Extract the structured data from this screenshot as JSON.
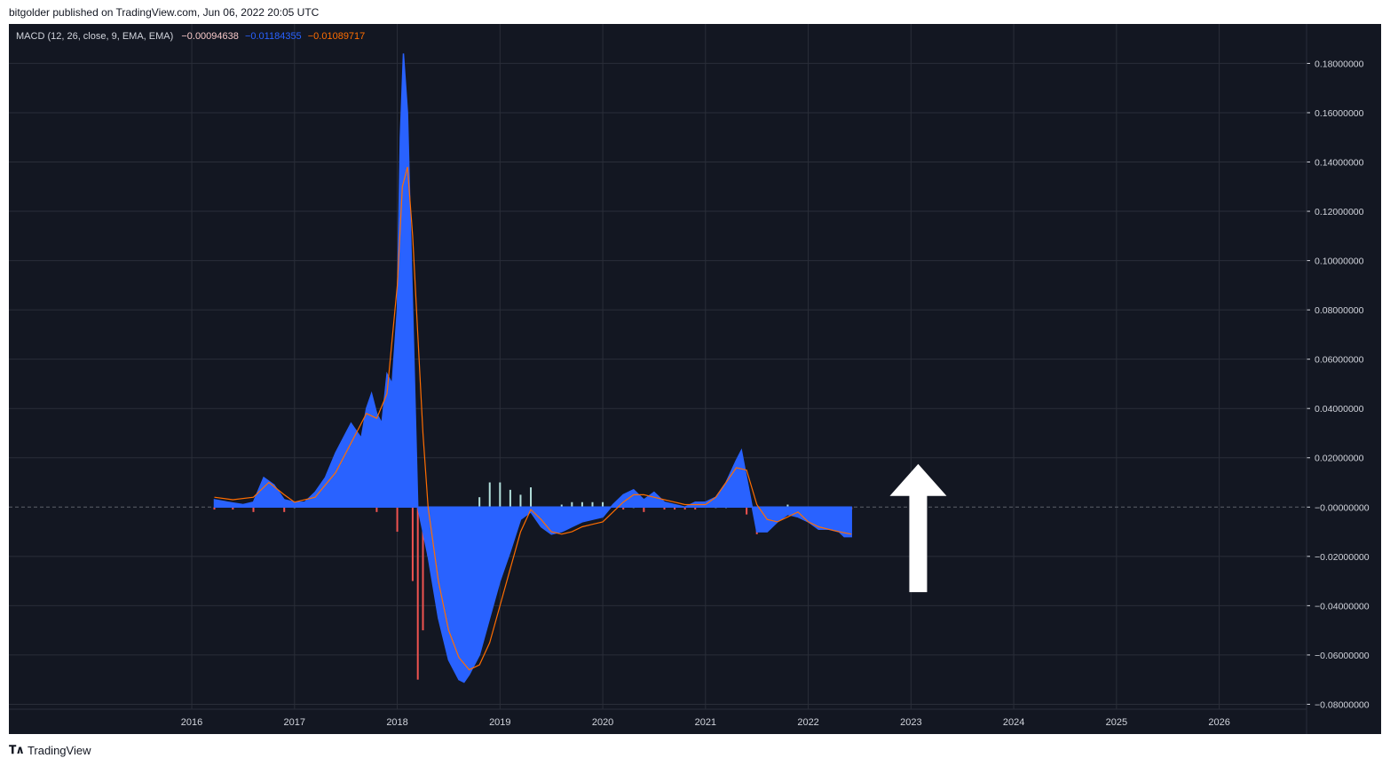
{
  "header": {
    "published": "bitgolder published on TradingView.com, Jun 06, 2022 20:05 UTC"
  },
  "legend": {
    "indicator": "MACD (12, 26, close, 9, EMA, EMA)",
    "histogram_value": "−0.00094638",
    "macd_value": "−0.01184355",
    "signal_value": "−0.01089717"
  },
  "footer": {
    "brand": "TradingView",
    "logo_icon": "tradingview-logo-icon"
  },
  "colors": {
    "background": "#131722",
    "grid": "#2a2e39",
    "text": "#d1d4dc",
    "macd": "#2962ff",
    "signal": "#ff6d00",
    "hist_up": "#26a69a",
    "hist_up_light": "#b2dfdb",
    "hist_down": "#ef5350",
    "hist_down_light": "#ffcdd2",
    "arrow": "#ffffff"
  },
  "chart_data": {
    "type": "area",
    "title": "MACD (12, 26, close, 9, EMA, EMA)",
    "x_ticks": [
      "2016",
      "2017",
      "2018",
      "2019",
      "2020",
      "2021",
      "2022",
      "2023",
      "2024",
      "2025",
      "2026"
    ],
    "y_ticks": [
      "0.18000000",
      "0.16000000",
      "0.14000000",
      "0.12000000",
      "0.10000000",
      "0.08000000",
      "0.06000000",
      "0.04000000",
      "0.02000000",
      "−0.00000000",
      "−0.02000000",
      "−0.04000000",
      "−0.06000000",
      "−0.08000000"
    ],
    "ylim": [
      -0.082,
      0.196
    ],
    "xlim": [
      2014.22,
      2026.85
    ],
    "grid": true,
    "annotation": "white up arrow near 2023 over the zero line",
    "series": [
      {
        "name": "MACD",
        "x": [
          2016.22,
          2016.35,
          2016.5,
          2016.6,
          2016.7,
          2016.8,
          2016.9,
          2017.0,
          2017.1,
          2017.2,
          2017.3,
          2017.4,
          2017.5,
          2017.55,
          2017.65,
          2017.7,
          2017.75,
          2017.8,
          2017.85,
          2017.9,
          2017.95,
          2018.0,
          2018.03,
          2018.06,
          2018.1,
          2018.15,
          2018.2,
          2018.3,
          2018.4,
          2018.5,
          2018.6,
          2018.65,
          2018.7,
          2018.8,
          2018.9,
          2019.0,
          2019.1,
          2019.2,
          2019.3,
          2019.4,
          2019.5,
          2019.6,
          2019.7,
          2019.8,
          2019.9,
          2020.0,
          2020.1,
          2020.2,
          2020.3,
          2020.4,
          2020.5,
          2020.6,
          2020.7,
          2020.8,
          2020.9,
          2021.0,
          2021.1,
          2021.2,
          2021.3,
          2021.35,
          2021.4,
          2021.5,
          2021.6,
          2021.7,
          2021.8,
          2021.9,
          2022.0,
          2022.1,
          2022.2,
          2022.3,
          2022.35,
          2022.42
        ],
        "y": [
          0.003,
          0.002,
          0.001,
          0.002,
          0.012,
          0.009,
          0.003,
          0.002,
          0.002,
          0.006,
          0.012,
          0.022,
          0.03,
          0.034,
          0.028,
          0.04,
          0.046,
          0.038,
          0.034,
          0.054,
          0.05,
          0.08,
          0.15,
          0.184,
          0.16,
          0.08,
          0.0,
          -0.02,
          -0.045,
          -0.062,
          -0.07,
          -0.071,
          -0.068,
          -0.06,
          -0.045,
          -0.03,
          -0.018,
          -0.005,
          -0.002,
          -0.008,
          -0.011,
          -0.01,
          -0.008,
          -0.006,
          -0.005,
          -0.004,
          0.001,
          0.005,
          0.007,
          0.003,
          0.006,
          0.002,
          0.001,
          0.0,
          0.002,
          0.002,
          0.004,
          0.01,
          0.019,
          0.023,
          0.012,
          -0.01,
          -0.01,
          -0.006,
          -0.003,
          -0.004,
          -0.006,
          -0.009,
          -0.009,
          -0.01,
          -0.012,
          -0.012
        ]
      },
      {
        "name": "Signal",
        "x": [
          2016.22,
          2016.4,
          2016.6,
          2016.75,
          2016.9,
          2017.0,
          2017.2,
          2017.4,
          2017.6,
          2017.7,
          2017.8,
          2017.9,
          2018.0,
          2018.05,
          2018.1,
          2018.15,
          2018.2,
          2018.25,
          2018.3,
          2018.4,
          2018.5,
          2018.6,
          2018.7,
          2018.8,
          2018.9,
          2019.0,
          2019.1,
          2019.2,
          2019.3,
          2019.4,
          2019.5,
          2019.6,
          2019.7,
          2019.8,
          2019.9,
          2020.0,
          2020.2,
          2020.3,
          2020.4,
          2020.5,
          2020.6,
          2020.7,
          2020.8,
          2020.9,
          2021.0,
          2021.1,
          2021.2,
          2021.3,
          2021.4,
          2021.5,
          2021.6,
          2021.7,
          2021.8,
          2021.9,
          2022.0,
          2022.1,
          2022.2,
          2022.3,
          2022.42
        ],
        "y": [
          0.004,
          0.003,
          0.004,
          0.01,
          0.005,
          0.002,
          0.004,
          0.014,
          0.03,
          0.038,
          0.036,
          0.046,
          0.09,
          0.13,
          0.138,
          0.11,
          0.07,
          0.03,
          0.0,
          -0.03,
          -0.05,
          -0.061,
          -0.066,
          -0.064,
          -0.055,
          -0.04,
          -0.025,
          -0.01,
          -0.001,
          -0.005,
          -0.01,
          -0.011,
          -0.01,
          -0.008,
          -0.007,
          -0.006,
          0.002,
          0.005,
          0.005,
          0.004,
          0.003,
          0.002,
          0.001,
          0.001,
          0.001,
          0.004,
          0.01,
          0.016,
          0.015,
          0.001,
          -0.005,
          -0.006,
          -0.004,
          -0.002,
          -0.006,
          -0.008,
          -0.009,
          -0.01,
          -0.011
        ]
      },
      {
        "name": "Histogram",
        "x": [
          2016.22,
          2016.4,
          2016.6,
          2016.75,
          2016.9,
          2017.0,
          2017.2,
          2017.4,
          2017.6,
          2017.7,
          2017.8,
          2017.9,
          2018.0,
          2018.05,
          2018.1,
          2018.15,
          2018.2,
          2018.25,
          2018.3,
          2018.4,
          2018.5,
          2018.6,
          2018.7,
          2018.8,
          2018.9,
          2019.0,
          2019.1,
          2019.2,
          2019.3,
          2019.4,
          2019.5,
          2019.6,
          2019.7,
          2019.8,
          2019.9,
          2020.0,
          2020.2,
          2020.3,
          2020.4,
          2020.5,
          2020.6,
          2020.7,
          2020.8,
          2020.9,
          2021.0,
          2021.1,
          2021.2,
          2021.3,
          2021.4,
          2021.5,
          2021.6,
          2021.7,
          2021.8,
          2021.9,
          2022.0,
          2022.1,
          2022.2,
          2022.3,
          2022.42
        ],
        "y": [
          -0.001,
          -0.001,
          -0.002,
          0.002,
          -0.002,
          0.0,
          0.002,
          0.008,
          0.004,
          0.002,
          -0.002,
          0.008,
          -0.01,
          0.054,
          0.022,
          -0.03,
          -0.07,
          -0.05,
          -0.02,
          -0.015,
          -0.012,
          -0.009,
          -0.005,
          0.004,
          0.01,
          0.01,
          0.007,
          0.005,
          0.008,
          -0.003,
          -0.001,
          0.001,
          0.002,
          0.002,
          0.002,
          0.002,
          -0.001,
          0.0,
          -0.002,
          0.002,
          -0.001,
          -0.001,
          -0.001,
          -0.001,
          0.001,
          0.0,
          0.0,
          0.003,
          -0.003,
          -0.011,
          -0.005,
          -0.004,
          0.001,
          -0.002,
          0.0,
          -0.001,
          0.0,
          -0.002,
          -0.001
        ]
      }
    ]
  }
}
